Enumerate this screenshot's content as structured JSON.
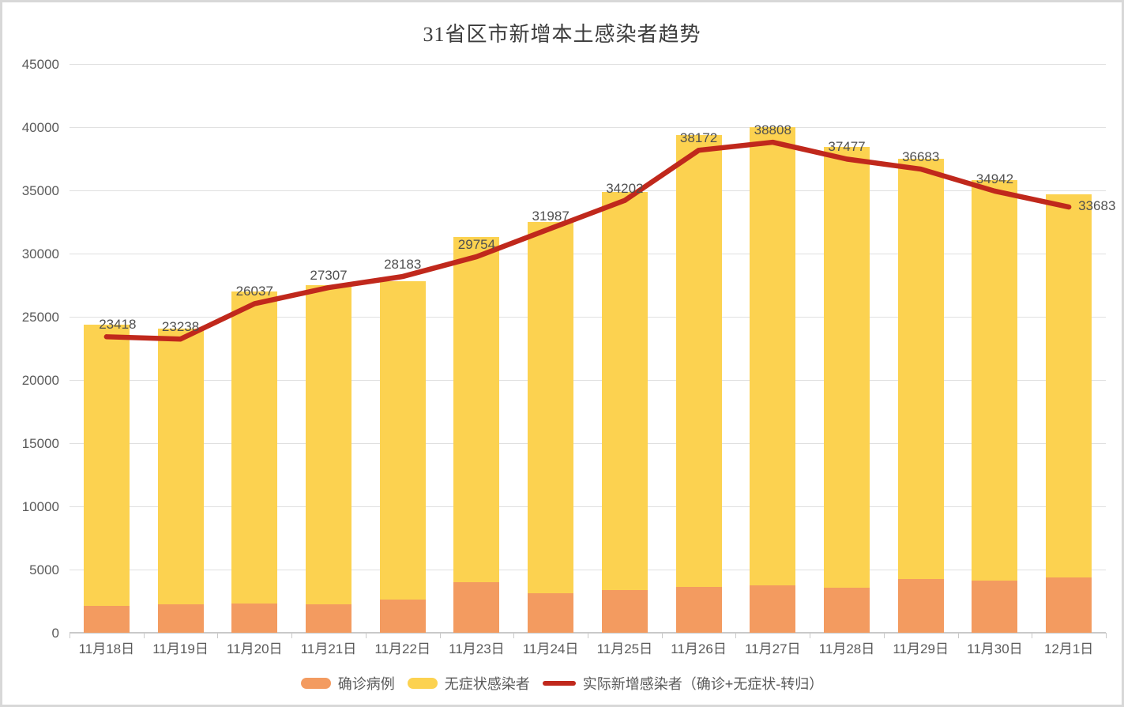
{
  "chart_data": {
    "type": "bar",
    "stacked": true,
    "has_line_overlay": true,
    "title": "31省区市新增本土感染者趋势",
    "categories": [
      "11月18日",
      "11月19日",
      "11月20日",
      "11月21日",
      "11月22日",
      "11月23日",
      "11月24日",
      "11月25日",
      "11月26日",
      "11月27日",
      "11月28日",
      "11月29日",
      "11月30日",
      "12月1日"
    ],
    "y_ticks": [
      "0",
      "5000",
      "10000",
      "15000",
      "20000",
      "25000",
      "30000",
      "35000",
      "40000",
      "45000"
    ],
    "ylim": [
      0,
      45000
    ],
    "ytick_interval": 5000,
    "grid": true,
    "legend_position": "bottom",
    "series": [
      {
        "name": "确诊病例",
        "type": "bar",
        "color": "#f39b60",
        "values": [
          2100,
          2250,
          2300,
          2250,
          2650,
          4000,
          3100,
          3400,
          3650,
          3750,
          3550,
          4250,
          4100,
          4350
        ]
      },
      {
        "name": "无症状感染者",
        "type": "bar",
        "color": "#fcd250",
        "values": [
          22250,
          21800,
          24700,
          25250,
          25150,
          27300,
          29400,
          31500,
          35700,
          36250,
          34900,
          33250,
          31700,
          30350
        ]
      },
      {
        "name": "实际新增感染者（确诊+无症状-转归）",
        "type": "line",
        "color": "#c0281c",
        "values": [
          23418,
          23238,
          26037,
          27307,
          28183,
          29754,
          31987,
          34202,
          38172,
          38808,
          37477,
          36683,
          34942,
          33683
        ],
        "data_labels_visible": true
      }
    ],
    "colors": {
      "axis_text": "#595959",
      "data_label_text": "#4f4f4f",
      "gridline": "#e0e0e0",
      "frame_border": "#d8d8d8",
      "background": "#ffffff"
    }
  }
}
